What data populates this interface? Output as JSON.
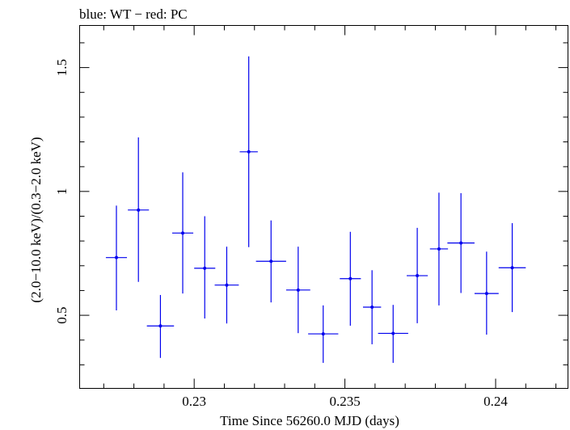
{
  "chart_data": {
    "type": "scatter",
    "title": "blue: WT − red: PC",
    "xlabel": "Time Since 56260.0 MJD (days)",
    "ylabel": "(2.0−10.0 keV)/(0.3−2.0 keV)",
    "xlim": [
      0.2262,
      0.2424
    ],
    "ylim": [
      0.205,
      1.67
    ],
    "xticks": [
      0.23,
      0.235,
      0.24
    ],
    "xtick_labels": [
      "0.23",
      "0.235",
      "0.24"
    ],
    "yticks": [
      0.5,
      1,
      1.5
    ],
    "ytick_labels": [
      "0.5",
      "1",
      "1.5"
    ],
    "colors": {
      "series": "#0000ee",
      "axes": "#000000"
    },
    "series": [
      {
        "points": [
          {
            "x": 0.22742,
            "xerr": 0.00035,
            "y": 0.733,
            "ylo": 0.52,
            "yhi": 0.943
          },
          {
            "x": 0.22815,
            "xerr": 0.00035,
            "y": 0.925,
            "ylo": 0.635,
            "yhi": 1.218
          },
          {
            "x": 0.22888,
            "xerr": 0.00045,
            "y": 0.457,
            "ylo": 0.328,
            "yhi": 0.582
          },
          {
            "x": 0.22962,
            "xerr": 0.00035,
            "y": 0.832,
            "ylo": 0.588,
            "yhi": 1.077
          },
          {
            "x": 0.23035,
            "xerr": 0.00035,
            "y": 0.69,
            "ylo": 0.487,
            "yhi": 0.9
          },
          {
            "x": 0.23108,
            "xerr": 0.0004,
            "y": 0.622,
            "ylo": 0.467,
            "yhi": 0.777
          },
          {
            "x": 0.23181,
            "xerr": 0.0003,
            "y": 1.16,
            "ylo": 0.775,
            "yhi": 1.545
          },
          {
            "x": 0.23255,
            "xerr": 0.0005,
            "y": 0.718,
            "ylo": 0.552,
            "yhi": 0.883
          },
          {
            "x": 0.23345,
            "xerr": 0.0004,
            "y": 0.602,
            "ylo": 0.428,
            "yhi": 0.777
          },
          {
            "x": 0.23428,
            "xerr": 0.0005,
            "y": 0.425,
            "ylo": 0.308,
            "yhi": 0.54
          },
          {
            "x": 0.23518,
            "xerr": 0.00035,
            "y": 0.648,
            "ylo": 0.458,
            "yhi": 0.837
          },
          {
            "x": 0.2359,
            "xerr": 0.0003,
            "y": 0.533,
            "ylo": 0.383,
            "yhi": 0.682
          },
          {
            "x": 0.2366,
            "xerr": 0.0005,
            "y": 0.427,
            "ylo": 0.308,
            "yhi": 0.542
          },
          {
            "x": 0.2374,
            "xerr": 0.00035,
            "y": 0.66,
            "ylo": 0.468,
            "yhi": 0.853
          },
          {
            "x": 0.23812,
            "xerr": 0.0003,
            "y": 0.768,
            "ylo": 0.54,
            "yhi": 0.995
          },
          {
            "x": 0.23885,
            "xerr": 0.00045,
            "y": 0.792,
            "ylo": 0.59,
            "yhi": 0.993
          },
          {
            "x": 0.2397,
            "xerr": 0.0004,
            "y": 0.588,
            "ylo": 0.422,
            "yhi": 0.757
          },
          {
            "x": 0.24055,
            "xerr": 0.00045,
            "y": 0.692,
            "ylo": 0.513,
            "yhi": 0.872
          }
        ]
      }
    ]
  }
}
